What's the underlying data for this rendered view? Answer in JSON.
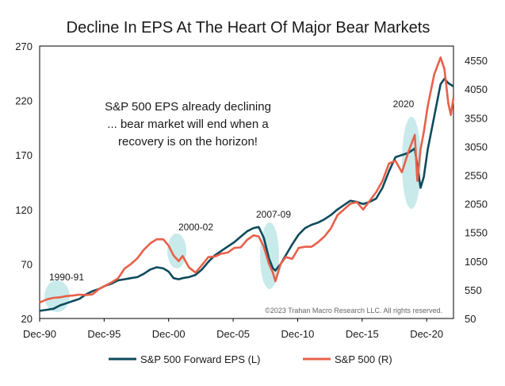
{
  "chart_data": {
    "type": "line",
    "title": "Decline In EPS At The Heart Of Major Bear Markets",
    "annotation": "S&P 500 EPS already declining ... bear market will end when a recovery is on the horizon!",
    "annotation_lines": [
      "S&P 500 EPS already declining",
      "... bear market will end when a",
      "recovery is on the horizon!"
    ],
    "copyright": "©2023 Trahan Macro Research LLC. All rights reserved.",
    "highlight_periods": [
      {
        "label": "1990-91",
        "x_center": 1991.0
      },
      {
        "label": "2000-02",
        "x_center": 2001.0
      },
      {
        "label": "2007-09",
        "x_center": 2008.3
      },
      {
        "label": "2020",
        "x_center": 2019.9
      }
    ],
    "x_ticks": [
      "Dec-90",
      "Dec-95",
      "Dec-00",
      "Dec-05",
      "Dec-10",
      "Dec-15",
      "Dec-20"
    ],
    "x_tick_values": [
      1990.92,
      1995.92,
      2000.92,
      2005.92,
      2010.92,
      2015.92,
      2020.92
    ],
    "xlim": [
      1990.92,
      2023.0
    ],
    "y_left_ticks": [
      "270",
      "220",
      "170",
      "120",
      "70",
      "20"
    ],
    "ylim_left": [
      20,
      270
    ],
    "y_right_ticks": [
      "4550",
      "4050",
      "3550",
      "3050",
      "2550",
      "2050",
      "1550",
      "1050",
      "550",
      "50"
    ],
    "ylim_right": [
      50,
      4800
    ],
    "grid": false,
    "legend_position": "bottom",
    "colors": {
      "eps": "#0d4a5c",
      "spx": "#e8604a",
      "highlight": "#bfe6e8"
    },
    "series": [
      {
        "name": "S&P 500 Forward EPS (L)",
        "axis": "left",
        "x": [
          1990.92,
          1991.5,
          1992.0,
          1992.5,
          1993.0,
          1993.5,
          1994.0,
          1994.5,
          1995.0,
          1995.5,
          1996.0,
          1996.5,
          1997.0,
          1997.5,
          1998.0,
          1998.5,
          1999.0,
          1999.5,
          2000.0,
          2000.5,
          2000.92,
          2001.3,
          2001.7,
          2002.0,
          2002.5,
          2003.0,
          2003.5,
          2004.0,
          2004.5,
          2005.0,
          2005.5,
          2006.0,
          2006.5,
          2007.0,
          2007.5,
          2007.9,
          2008.3,
          2008.7,
          2009.0,
          2009.2,
          2009.6,
          2010.0,
          2010.5,
          2011.0,
          2011.5,
          2012.0,
          2012.5,
          2013.0,
          2013.5,
          2014.0,
          2014.5,
          2015.0,
          2015.5,
          2016.0,
          2016.5,
          2017.0,
          2017.5,
          2018.0,
          2018.5,
          2019.0,
          2019.5,
          2020.0,
          2020.2,
          2020.45,
          2020.7,
          2021.0,
          2021.5,
          2022.0,
          2022.3,
          2022.6,
          2023.0
        ],
        "values": [
          27,
          28,
          29,
          32,
          34,
          36,
          38,
          42,
          45,
          47,
          50,
          52,
          55,
          56,
          57,
          58,
          61,
          65,
          67,
          66,
          63,
          57,
          56,
          57,
          58,
          60,
          65,
          72,
          78,
          82,
          86,
          90,
          95,
          100,
          103,
          104,
          94,
          75,
          66,
          64,
          70,
          78,
          88,
          97,
          103,
          106,
          108,
          111,
          115,
          120,
          124,
          128,
          127,
          125,
          127,
          130,
          140,
          155,
          168,
          170,
          172,
          176,
          160,
          140,
          150,
          175,
          205,
          235,
          240,
          236,
          233
        ]
      },
      {
        "name": "S&P 500 (R)",
        "axis": "right",
        "x": [
          1990.92,
          1991.5,
          1992.0,
          1992.5,
          1993.0,
          1993.5,
          1994.0,
          1994.5,
          1995.0,
          1995.5,
          1996.0,
          1996.5,
          1997.0,
          1997.5,
          1998.0,
          1998.5,
          1999.0,
          1999.5,
          2000.0,
          2000.5,
          2000.92,
          2001.3,
          2001.7,
          2002.0,
          2002.5,
          2003.0,
          2003.5,
          2004.0,
          2004.5,
          2005.0,
          2005.5,
          2006.0,
          2006.5,
          2007.0,
          2007.5,
          2007.9,
          2008.3,
          2008.7,
          2009.0,
          2009.2,
          2009.6,
          2010.0,
          2010.5,
          2011.0,
          2011.5,
          2012.0,
          2012.5,
          2013.0,
          2013.5,
          2014.0,
          2014.5,
          2015.0,
          2015.5,
          2016.0,
          2016.5,
          2017.0,
          2017.5,
          2018.0,
          2018.5,
          2019.0,
          2019.5,
          2020.0,
          2020.2,
          2020.45,
          2020.7,
          2021.0,
          2021.5,
          2022.0,
          2022.3,
          2022.6,
          2022.8,
          2023.0
        ],
        "values": [
          330,
          385,
          410,
          420,
          440,
          450,
          465,
          460,
          470,
          560,
          620,
          680,
          750,
          920,
          1000,
          1100,
          1250,
          1360,
          1430,
          1430,
          1320,
          1150,
          1050,
          1140,
          940,
          850,
          980,
          1120,
          1130,
          1180,
          1200,
          1280,
          1290,
          1420,
          1500,
          1480,
          1300,
          1000,
          850,
          700,
          1000,
          1120,
          1090,
          1280,
          1300,
          1300,
          1380,
          1480,
          1620,
          1850,
          1950,
          2050,
          2080,
          1950,
          2100,
          2250,
          2450,
          2750,
          2800,
          2600,
          2950,
          3250,
          2450,
          3000,
          3300,
          3750,
          4300,
          4600,
          4400,
          3800,
          3600,
          3900
        ]
      }
    ]
  }
}
